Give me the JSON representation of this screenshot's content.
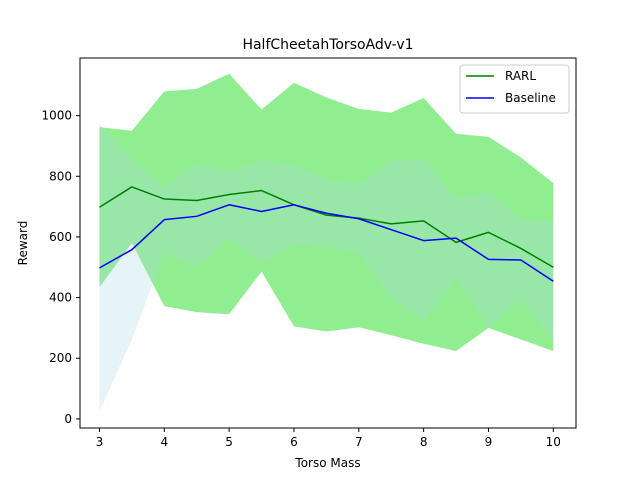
{
  "chart_data": {
    "type": "line",
    "title": "HalfCheetahTorsoAdv-v1",
    "xlabel": "Torso Mass",
    "ylabel": "Reward",
    "xlim": [
      2.7,
      10.35
    ],
    "ylim": [
      -30,
      1190
    ],
    "xticks": [
      3,
      4,
      5,
      6,
      7,
      8,
      9,
      10
    ],
    "yticks": [
      0,
      200,
      400,
      600,
      800,
      1000
    ],
    "legend_position": "top-right",
    "x": [
      3,
      3.5,
      4,
      4.5,
      5,
      5.5,
      6,
      6.5,
      7,
      7.5,
      8,
      8.5,
      9,
      9.5,
      10
    ],
    "series": [
      {
        "name": "RARL",
        "color": "#008000",
        "band_color": "#90ee90",
        "values": [
          698,
          765,
          725,
          720,
          740,
          753,
          706,
          672,
          662,
          643,
          653,
          582,
          615,
          562,
          500
        ],
        "upper": [
          962,
          950,
          1080,
          1088,
          1138,
          1020,
          1108,
          1060,
          1022,
          1010,
          1058,
          940,
          930,
          862,
          778
        ],
        "lower": [
          434,
          580,
          372,
          352,
          345,
          486,
          305,
          288,
          302,
          276,
          248,
          224,
          300,
          262,
          224
        ]
      },
      {
        "name": "Baseline",
        "color": "#0000ff",
        "band_color": "#add8e6",
        "values": [
          498,
          558,
          657,
          668,
          706,
          684,
          706,
          678,
          660,
          624,
          588,
          596,
          526,
          524,
          454
        ],
        "upper": [
          972,
          856,
          764,
          840,
          818,
          854,
          836,
          788,
          776,
          850,
          854,
          728,
          746,
          656,
          650
        ],
        "lower": [
          24,
          262,
          550,
          502,
          594,
          514,
          576,
          568,
          544,
          398,
          322,
          464,
          306,
          392,
          258
        ]
      }
    ]
  }
}
